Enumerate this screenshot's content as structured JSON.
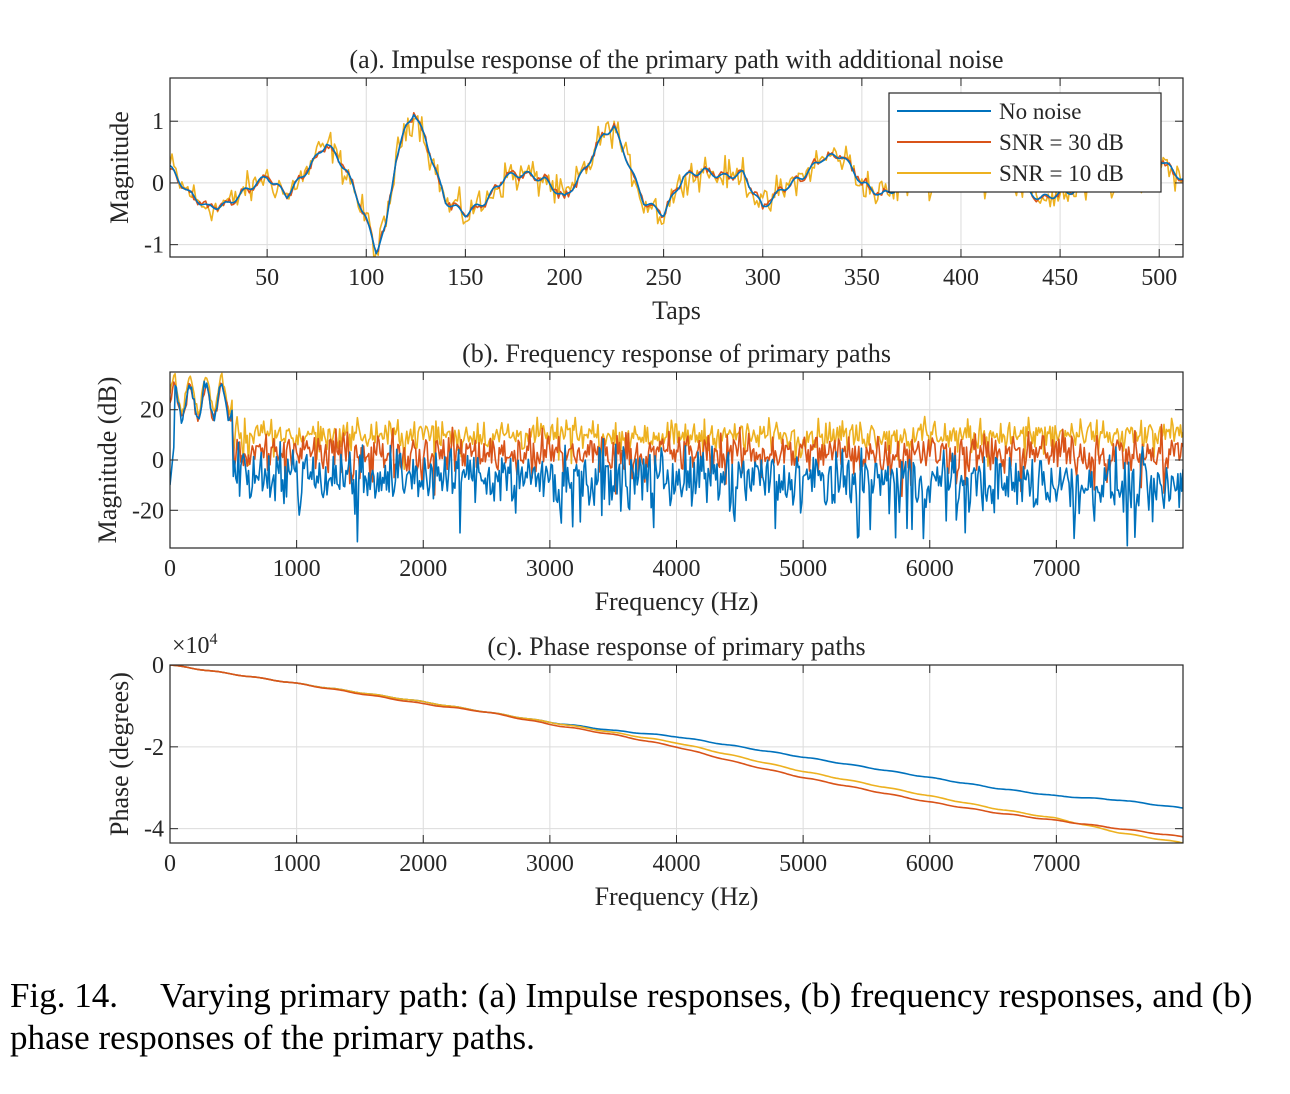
{
  "chart_data": [
    {
      "type": "line",
      "title": "(a). Impulse response of the primary path with additional noise",
      "xlabel": "Taps",
      "ylabel": "Magnitude",
      "xlim": [
        1,
        512
      ],
      "ylim": [
        -1.2,
        1.7
      ],
      "xticks": [
        50,
        100,
        150,
        200,
        250,
        300,
        350,
        400,
        450,
        500
      ],
      "yticks": [
        -1,
        0,
        1
      ],
      "grid": true,
      "legend_position": "top-right",
      "x_anchor": [
        1,
        10,
        20,
        30,
        40,
        50,
        60,
        70,
        80,
        90,
        100,
        105,
        110,
        115,
        120,
        124,
        130,
        140,
        150,
        160,
        170,
        180,
        190,
        200,
        210,
        220,
        225,
        230,
        240,
        250,
        260,
        270,
        280,
        290,
        300,
        310,
        320,
        330,
        340,
        350,
        360,
        380,
        400,
        420,
        440,
        460,
        480,
        500,
        512
      ],
      "series": [
        {
          "name": "No noise",
          "color": "#0072BD",
          "noise": 0.0,
          "values": [
            0.25,
            -0.15,
            -0.4,
            -0.35,
            -0.1,
            0.1,
            -0.2,
            0.2,
            0.65,
            0.2,
            -0.6,
            -1.1,
            -0.7,
            0.4,
            0.9,
            1.15,
            0.7,
            -0.3,
            -0.5,
            -0.3,
            0.1,
            0.15,
            0.05,
            -0.25,
            0.2,
            0.8,
            0.9,
            0.5,
            -0.3,
            -0.5,
            0.1,
            0.2,
            0.1,
            0.15,
            -0.4,
            -0.1,
            0.1,
            0.4,
            0.45,
            0.0,
            -0.2,
            0.1,
            0.05,
            0.1,
            -0.25,
            -0.1,
            0.0,
            0.4,
            0.05
          ]
        },
        {
          "name": "SNR = 30 dB",
          "color": "#D95319",
          "noise": 0.05
        },
        {
          "name": "SNR = 10 dB",
          "color": "#EDB120",
          "noise": 0.22
        }
      ]
    },
    {
      "type": "line",
      "title": "(b). Frequency response of primary paths",
      "xlabel": "Frequency (Hz)",
      "ylabel": "Magnitude (dB)",
      "xlim": [
        0,
        8000
      ],
      "ylim": [
        -35,
        35
      ],
      "xticks": [
        0,
        1000,
        2000,
        3000,
        4000,
        5000,
        6000,
        7000
      ],
      "yticks": [
        -20,
        0,
        20
      ],
      "grid": true,
      "series": [
        {
          "name": "No noise",
          "color": "#0072BD",
          "low_band": [
            15,
            30
          ],
          "mean": -5,
          "mean_end": -10,
          "spread": 10
        },
        {
          "name": "SNR = 30 dB",
          "color": "#D95319",
          "low_band": [
            15,
            30
          ],
          "mean": 3,
          "mean_end": 3,
          "spread": 7
        },
        {
          "name": "SNR = 10 dB",
          "color": "#EDB120",
          "low_band": [
            18,
            33
          ],
          "mean": 10,
          "mean_end": 10,
          "spread": 5
        }
      ]
    },
    {
      "type": "line",
      "title": "(c). Phase response of primary paths",
      "xlabel": "Frequency (Hz)",
      "ylabel": "Phase (degrees)",
      "y_exponent_label": "×10",
      "y_exponent_power": "4",
      "xlim": [
        0,
        8000
      ],
      "ylim": [
        -4.35,
        0
      ],
      "xticks": [
        0,
        1000,
        2000,
        3000,
        4000,
        5000,
        6000,
        7000
      ],
      "yticks": [
        -4,
        -2,
        0
      ],
      "grid": true,
      "x": [
        0,
        1000,
        2000,
        2500,
        3000,
        3500,
        4000,
        4500,
        5000,
        5500,
        6000,
        6500,
        7000,
        7500,
        8000
      ],
      "series": [
        {
          "name": "No noise",
          "color": "#0072BD",
          "values": [
            0,
            -0.45,
            -0.9,
            -1.15,
            -1.4,
            -1.6,
            -1.75,
            -2.0,
            -2.25,
            -2.5,
            -2.75,
            -3.0,
            -3.2,
            -3.3,
            -3.5
          ]
        },
        {
          "name": "SNR = 30 dB",
          "color": "#D95319",
          "values": [
            0,
            -0.45,
            -0.95,
            -1.15,
            -1.45,
            -1.7,
            -2.0,
            -2.4,
            -2.75,
            -3.05,
            -3.35,
            -3.6,
            -3.8,
            -4.0,
            -4.2
          ]
        },
        {
          "name": "SNR = 10 dB",
          "color": "#EDB120",
          "values": [
            0,
            -0.45,
            -0.9,
            -1.15,
            -1.4,
            -1.65,
            -1.9,
            -2.25,
            -2.6,
            -2.9,
            -3.2,
            -3.5,
            -3.75,
            -4.1,
            -4.35
          ]
        }
      ]
    }
  ],
  "caption": {
    "label": "Fig. 14.",
    "text": "Varying primary path: (a) Impulse responses, (b) frequency responses, and (b) phase responses of the primary paths."
  }
}
